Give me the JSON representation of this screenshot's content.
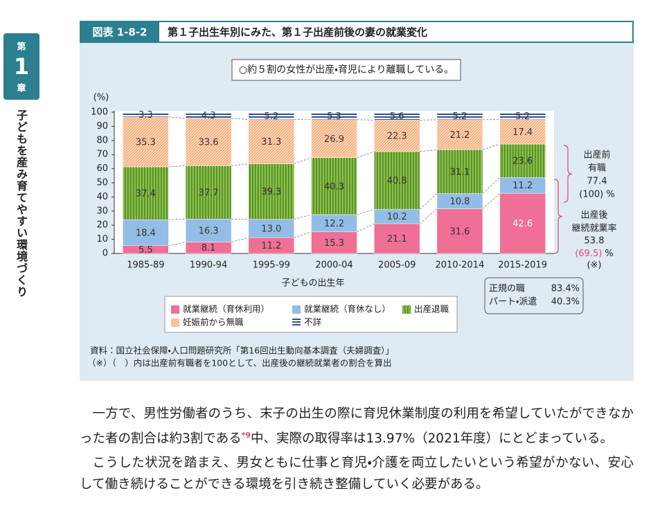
{
  "sidebar": {
    "chapter_prefix": "第",
    "chapter_number": "1",
    "chapter_suffix": "章",
    "title": "子どもを産み育てやすい環境づくり"
  },
  "figure": {
    "label": "図表 1-8-2",
    "title": "第１子出生年別にみた、第１子出産前後の妻の就業変化",
    "callout": "○約５割の女性が出産・育児により離職している。",
    "source": "資料：国立社会保障・人口問題研究所「第16回出生動向基本調査（夫婦調査）」",
    "note": "（※）（　）内は出産前有職者を100として、出産後の継続就業者の割合を算出"
  },
  "chart_data": {
    "type": "stacked_bar",
    "y_unit": "(%)",
    "xlabel": "子どもの出生年",
    "categories": [
      "1985-89",
      "1990-94",
      "1995-99",
      "2000-04",
      "2005-09",
      "2010-2014",
      "2015-2019"
    ],
    "series": [
      {
        "name": "就業継続（育休利用）",
        "color": "#ef6f96",
        "hatch": null,
        "values": [
          5.5,
          8.1,
          11.2,
          15.3,
          21.1,
          31.6,
          42.6
        ]
      },
      {
        "name": "就業継続（育休なし）",
        "color": "#93bde6",
        "hatch": null,
        "values": [
          18.4,
          16.3,
          13.0,
          12.2,
          10.2,
          10.8,
          11.2
        ],
        "value_labels": [
          "18.4",
          "16.3",
          "13.0",
          "12.2",
          "10.2",
          "10.8",
          "11.2"
        ]
      },
      {
        "name": "出産退職",
        "color": "#8cbf4c",
        "hatch": "vertical",
        "values": [
          37.4,
          37.7,
          39.3,
          40.3,
          40.8,
          31.1,
          23.6
        ]
      },
      {
        "name": "妊娠前から無職",
        "color": "#f6a46c",
        "hatch": "diagonal",
        "values": [
          35.3,
          33.6,
          31.3,
          26.9,
          22.3,
          21.2,
          17.4
        ]
      },
      {
        "name": "不詳",
        "color": "#2f4f8a",
        "hatch": "horizontal",
        "values": [
          3.3,
          4.3,
          5.2,
          5.3,
          5.6,
          5.2,
          5.2
        ]
      }
    ],
    "ylim": [
      0,
      100
    ],
    "yticks": [
      0,
      10,
      20,
      30,
      40,
      50,
      60,
      70,
      80,
      90,
      100
    ],
    "annotations": {
      "pre": [
        "出産前",
        "有職",
        "77.4",
        "(100) %"
      ],
      "post": [
        "出産後",
        "継続就業率",
        "53.8"
      ],
      "post_rate": "(69.5)",
      "post_unit": " %",
      "post_note": "(※)"
    },
    "employment_box": [
      [
        "正規の職",
        "83.4%"
      ],
      [
        "パート・派遣",
        "40.3%"
      ]
    ]
  },
  "body": {
    "paragraphs": [
      {
        "before": "一方で、男性労働者のうち、末子の出生の際に育児休業制度の利用を希望していたができなかった者の割合は約3割である",
        "footnote": "*9",
        "after": "中、実際の取得率は13.97%（2021年度）にとどまっている。"
      },
      {
        "before": "こうした状況を踏まえ、男女ともに仕事と育児・介護を両立したいという希望がかない、安心して働き続けることができる環境を引き続き整備していく必要がある。"
      }
    ]
  }
}
